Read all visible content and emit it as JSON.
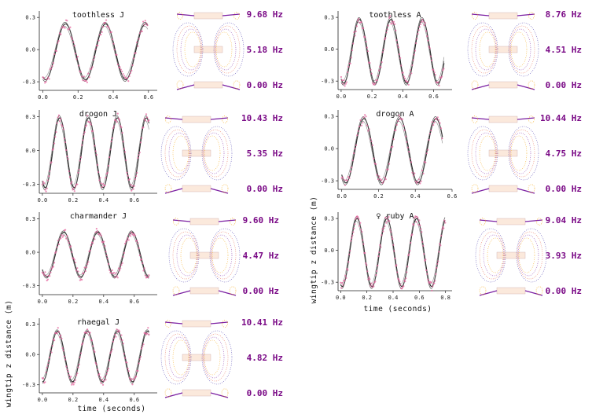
{
  "chart_data": {
    "type": "line",
    "xlabel_left": "time (seconds)",
    "xlabel_right": "time (seconds)",
    "ylabel_left": "wingtip z distance (m)",
    "ylabel_right": "wingtip z distance (m)",
    "panels": [
      {
        "title": "toothless J",
        "xlim": [
          -0.02,
          0.65
        ],
        "ylim": [
          -0.38,
          0.36
        ],
        "xticks": [
          "0.0",
          "0.2",
          "0.4",
          "0.6"
        ],
        "yticks": [
          "0.3",
          "0.0",
          "-0.3"
        ],
        "freq": 4.4,
        "amp": 0.26,
        "phase": -2.0,
        "frequencies": [
          "9.68 Hz",
          "5.18 Hz",
          "0.00 Hz"
        ]
      },
      {
        "title": "drogon J",
        "xlim": [
          -0.02,
          0.75
        ],
        "ylim": [
          -0.38,
          0.36
        ],
        "xticks": [
          "0.0",
          "0.2",
          "0.4",
          "0.6"
        ],
        "yticks": [
          "0.3",
          "0.0",
          "-0.3"
        ],
        "freq": 5.3,
        "amp": 0.31,
        "phase": -2.2,
        "frequencies": [
          "10.43 Hz",
          "5.35 Hz",
          "0.00 Hz"
        ]
      },
      {
        "title": "charmander J",
        "xlim": [
          -0.02,
          0.75
        ],
        "ylim": [
          -0.38,
          0.36
        ],
        "xticks": [
          "0.0",
          "0.2",
          "0.4",
          "0.6"
        ],
        "yticks": [
          "0.3",
          "0.0",
          "-0.3"
        ],
        "freq": 4.5,
        "amp": 0.2,
        "phase": -2.4,
        "frequencies": [
          "9.60 Hz",
          "4.47 Hz",
          "0.00 Hz"
        ]
      },
      {
        "title": "rhaegal J",
        "xlim": [
          -0.02,
          0.75
        ],
        "ylim": [
          -0.38,
          0.36
        ],
        "xticks": [
          "0.0",
          "0.2",
          "0.4",
          "0.6"
        ],
        "yticks": [
          "0.3",
          "0.0",
          "-0.3"
        ],
        "freq": 5.1,
        "amp": 0.25,
        "phase": -1.6,
        "frequencies": [
          "10.41 Hz",
          "4.82 Hz",
          "0.00 Hz"
        ]
      },
      {
        "title": "toothless A",
        "xlim": [
          -0.02,
          0.72
        ],
        "ylim": [
          -0.38,
          0.36
        ],
        "xticks": [
          "0.0",
          "0.2",
          "0.4",
          "0.6"
        ],
        "yticks": [
          "0.3",
          "0.0",
          "-0.3"
        ],
        "freq": 4.9,
        "amp": 0.3,
        "phase": -2.1,
        "frequencies": [
          "8.76 Hz",
          "4.51 Hz",
          "0.00 Hz"
        ]
      },
      {
        "title": "drogon A",
        "xlim": [
          -0.02,
          0.6
        ],
        "ylim": [
          -0.38,
          0.36
        ],
        "xticks": [
          "0.0",
          "0.2",
          "0.4",
          "0.6"
        ],
        "yticks": [
          "0.3",
          "0.0",
          "-0.3"
        ],
        "freq": 5.1,
        "amp": 0.3,
        "phase": -2.3,
        "frequencies": [
          "10.44 Hz",
          "4.75 Hz",
          "0.00 Hz"
        ]
      },
      {
        "title": "♀ ruby A",
        "xlim": [
          -0.02,
          0.85
        ],
        "ylim": [
          -0.38,
          0.36
        ],
        "xticks": [
          "0.0",
          "0.2",
          "0.4",
          "0.6",
          "0.8"
        ],
        "yticks": [
          "0.3",
          "0.0",
          "-0.3"
        ],
        "freq": 4.4,
        "amp": 0.32,
        "phase": -1.9,
        "frequencies": [
          "9.04 Hz",
          "3.93 Hz",
          "0.00 Hz"
        ]
      }
    ]
  }
}
